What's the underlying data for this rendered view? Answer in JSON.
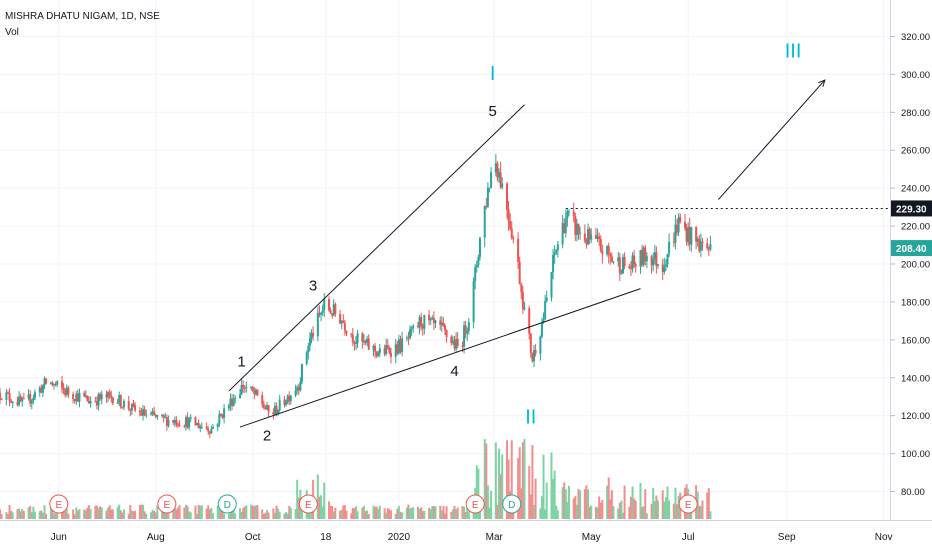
{
  "header": {
    "title": "MISHRA DHATU NIGAM, 1D, NSE",
    "volume_label": "Vol"
  },
  "colors": {
    "up": "#26a69a",
    "down": "#ef5350",
    "vol_up": "#7dd3a4",
    "vol_down": "#f28e8e",
    "wave_cyan": "#00bcd4",
    "event_e": "#ef5350",
    "event_d": "#26a69a",
    "axis_text": "#131722",
    "grid": "#f0f3fa"
  },
  "chart_data": {
    "type": "candlestick",
    "title": "MISHRA DHATU NIGAM, 1D, NSE",
    "y_axis": {
      "ticks": [
        "320.00",
        "300.00",
        "280.00",
        "260.00",
        "240.00",
        "220.00",
        "200.00",
        "180.00",
        "160.00",
        "140.00",
        "120.00",
        "100.00",
        "80.00"
      ],
      "tick_values": [
        320,
        300,
        280,
        260,
        240,
        220,
        200,
        180,
        160,
        140,
        120,
        100,
        80
      ],
      "ylim": [
        65,
        335
      ]
    },
    "x_axis": {
      "ticks": [
        "Jun",
        "Aug",
        "Oct",
        "18",
        "2020",
        "Mar",
        "May",
        "Jul",
        "Sep",
        "Nov"
      ],
      "tick_dates": [
        "2019-06-01",
        "2019-08-01",
        "2019-10-01",
        "2019-11-16",
        "2020-01-01",
        "2020-03-01",
        "2020-05-01",
        "2020-07-01",
        "2020-09-01",
        "2020-11-01"
      ],
      "xlim": [
        "2019-04-25",
        "2020-11-05"
      ]
    },
    "price_keypoints": [
      {
        "date": "2019-04-25",
        "price": 132
      },
      {
        "date": "2019-05-10",
        "price": 126
      },
      {
        "date": "2019-05-25",
        "price": 138
      },
      {
        "date": "2019-06-05",
        "price": 133
      },
      {
        "date": "2019-06-20",
        "price": 128
      },
      {
        "date": "2019-07-05",
        "price": 130
      },
      {
        "date": "2019-07-20",
        "price": 122
      },
      {
        "date": "2019-08-05",
        "price": 118
      },
      {
        "date": "2019-08-20",
        "price": 117
      },
      {
        "date": "2019-09-05",
        "price": 113
      },
      {
        "date": "2019-09-15",
        "price": 125
      },
      {
        "date": "2019-09-25",
        "price": 136
      },
      {
        "date": "2019-10-05",
        "price": 129
      },
      {
        "date": "2019-10-12",
        "price": 120
      },
      {
        "date": "2019-10-20",
        "price": 127
      },
      {
        "date": "2019-10-30",
        "price": 137
      },
      {
        "date": "2019-11-05",
        "price": 158
      },
      {
        "date": "2019-11-15",
        "price": 178
      },
      {
        "date": "2019-11-25",
        "price": 172
      },
      {
        "date": "2019-12-05",
        "price": 160
      },
      {
        "date": "2019-12-20",
        "price": 153
      },
      {
        "date": "2020-01-05",
        "price": 158
      },
      {
        "date": "2020-01-15",
        "price": 170
      },
      {
        "date": "2020-01-28",
        "price": 165
      },
      {
        "date": "2020-02-08",
        "price": 155
      },
      {
        "date": "2020-02-15",
        "price": 175
      },
      {
        "date": "2020-02-22",
        "price": 220
      },
      {
        "date": "2020-03-01",
        "price": 258
      },
      {
        "date": "2020-03-08",
        "price": 235
      },
      {
        "date": "2020-03-15",
        "price": 205
      },
      {
        "date": "2020-03-20",
        "price": 175
      },
      {
        "date": "2020-03-25",
        "price": 150
      },
      {
        "date": "2020-04-01",
        "price": 172
      },
      {
        "date": "2020-04-08",
        "price": 205
      },
      {
        "date": "2020-04-15",
        "price": 225
      },
      {
        "date": "2020-04-25",
        "price": 215
      },
      {
        "date": "2020-05-05",
        "price": 210
      },
      {
        "date": "2020-05-15",
        "price": 202
      },
      {
        "date": "2020-05-25",
        "price": 198
      },
      {
        "date": "2020-06-05",
        "price": 205
      },
      {
        "date": "2020-06-15",
        "price": 200
      },
      {
        "date": "2020-06-25",
        "price": 222
      },
      {
        "date": "2020-07-05",
        "price": 212
      },
      {
        "date": "2020-07-15",
        "price": 208
      }
    ],
    "last_price": {
      "value": 208.4,
      "label": "208.40"
    },
    "resistance": {
      "value": 229.3,
      "label": "229.30",
      "from": "2020-04-15",
      "to": "2020-11-05"
    },
    "trendlines": [
      {
        "from": {
          "date": "2019-09-16",
          "price": 133
        },
        "to": {
          "date": "2020-03-20",
          "price": 284
        }
      },
      {
        "from": {
          "date": "2019-09-23",
          "price": 114
        },
        "to": {
          "date": "2020-06-01",
          "price": 187
        }
      }
    ],
    "target_arrow": {
      "from": {
        "date": "2020-07-20",
        "price": 234
      },
      "to": {
        "date": "2020-09-25",
        "price": 297
      }
    },
    "wave_labels": [
      {
        "text": "1",
        "date": "2019-09-24",
        "price": 146,
        "color": "#131722"
      },
      {
        "text": "2",
        "date": "2019-10-10",
        "price": 107,
        "color": "#131722"
      },
      {
        "text": "3",
        "date": "2019-11-08",
        "price": 186,
        "color": "#131722"
      },
      {
        "text": "4",
        "date": "2020-02-05",
        "price": 141,
        "color": "#131722"
      },
      {
        "text": "5",
        "date": "2020-02-29",
        "price": 278,
        "color": "#131722"
      },
      {
        "text": "I",
        "date": "2020-02-29",
        "price": 297,
        "color": "#00bcd4"
      },
      {
        "text": "II",
        "date": "2020-03-24",
        "price": 116,
        "color": "#00bcd4"
      },
      {
        "text": "III",
        "date": "2020-09-05",
        "price": 309,
        "color": "#00bcd4"
      }
    ],
    "events": [
      {
        "type": "E",
        "date": "2019-06-01"
      },
      {
        "type": "E",
        "date": "2019-08-08"
      },
      {
        "type": "D",
        "date": "2019-09-15"
      },
      {
        "type": "E",
        "date": "2019-11-05"
      },
      {
        "type": "E",
        "date": "2020-02-18"
      },
      {
        "type": "D",
        "date": "2020-03-12"
      },
      {
        "type": "E",
        "date": "2020-07-01"
      }
    ]
  }
}
